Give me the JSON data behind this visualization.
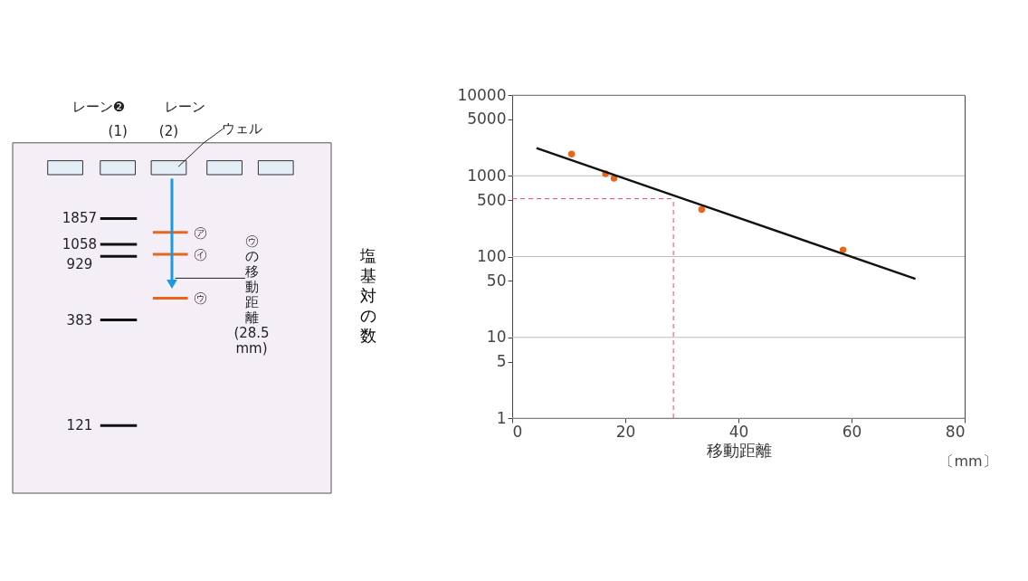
{
  "chart_data": [
    {
      "type": "other",
      "annotations": [
        "レーン❷",
        "(1)",
        "レーン",
        "(2)",
        "ウェル",
        "1857",
        "1058",
        "929",
        "383",
        "121",
        "㋐",
        "㋑",
        "㋒",
        "㋒の移動距離(28.5mm)"
      ]
    },
    {
      "type": "scatter",
      "xlabel": "移動距離",
      "ylabel": "塩基対の数",
      "annotations": [
        "〔mm〕"
      ],
      "log": "y",
      "xlim": [
        0,
        80
      ],
      "ylim": [
        1,
        10000
      ],
      "xticks": [
        0,
        20,
        40,
        60,
        80
      ],
      "yticks": [
        1,
        5,
        10,
        50,
        100,
        500,
        1000,
        5000,
        10000
      ],
      "grid": "y",
      "series": [
        {
          "type": "scatter",
          "marker": "circle",
          "color": "#e8661c",
          "x": [
            10.5,
            16.5,
            18,
            33.5,
            58.5
          ],
          "values": [
            1857,
            1058,
            929,
            383,
            121
          ]
        },
        {
          "type": "line",
          "marker": "none",
          "color": "#111111",
          "x": [
            4.3,
            71.3
          ],
          "values": [
            2200,
            53
          ]
        }
      ],
      "ref_lines": [
        {
          "axis": "x",
          "value": 28.5,
          "color": "#e8437a",
          "line_style": "dashed"
        },
        {
          "axis": "y",
          "value": 520,
          "color": "#e8437a",
          "line_style": "dashed"
        }
      ]
    }
  ]
}
